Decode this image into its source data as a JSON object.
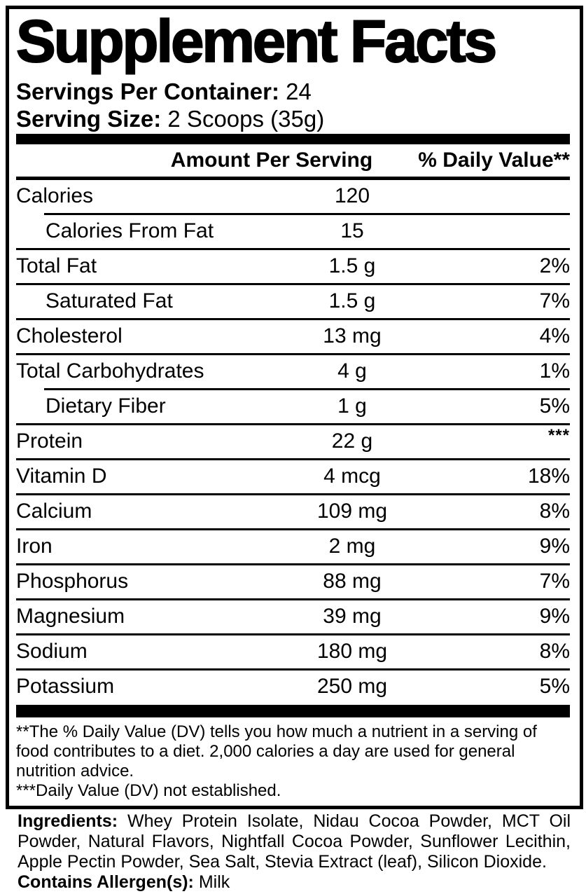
{
  "panel": {
    "title": "Supplement Facts",
    "servings_per_container": {
      "label": "Servings Per Container:",
      "value": "24"
    },
    "serving_size": {
      "label": "Serving Size:",
      "value": "2 Scoops (35g)"
    },
    "columns": {
      "amount": "Amount Per Serving",
      "daily_value": "% Daily Value**"
    },
    "rows": [
      {
        "label": "Calories",
        "amount": "120",
        "dv": "",
        "indent": false,
        "separator_above": null
      },
      {
        "label": "Calories From Fat",
        "amount": "15",
        "dv": "",
        "indent": true,
        "separator_above": "indented"
      },
      {
        "label": "Total Fat",
        "amount": "1.5 g",
        "dv": "2%",
        "indent": false,
        "separator_above": "full"
      },
      {
        "label": "Saturated Fat",
        "amount": "1.5 g",
        "dv": "7%",
        "indent": true,
        "separator_above": "full"
      },
      {
        "label": "Cholesterol",
        "amount": "13 mg",
        "dv": "4%",
        "indent": false,
        "separator_above": "full"
      },
      {
        "label": "Total Carbohydrates",
        "amount": "4 g",
        "dv": "1%",
        "indent": false,
        "separator_above": "full"
      },
      {
        "label": "Dietary Fiber",
        "amount": "1 g",
        "dv": "5%",
        "indent": true,
        "separator_above": "indented"
      },
      {
        "label": "Protein",
        "amount": "22 g",
        "dv": "***",
        "indent": false,
        "separator_above": "full"
      },
      {
        "label": "Vitamin D",
        "amount": "4 mcg",
        "dv": "18%",
        "indent": false,
        "separator_above": "full"
      },
      {
        "label": "Calcium",
        "amount": "109 mg",
        "dv": "8%",
        "indent": false,
        "separator_above": "full"
      },
      {
        "label": "Iron",
        "amount": "2 mg",
        "dv": "9%",
        "indent": false,
        "separator_above": "full"
      },
      {
        "label": "Phosphorus",
        "amount": "88 mg",
        "dv": "7%",
        "indent": false,
        "separator_above": "full"
      },
      {
        "label": "Magnesium",
        "amount": "39 mg",
        "dv": "9%",
        "indent": false,
        "separator_above": "full"
      },
      {
        "label": "Sodium",
        "amount": "180 mg",
        "dv": "8%",
        "indent": false,
        "separator_above": "full"
      },
      {
        "label": "Potassium",
        "amount": "250 mg",
        "dv": "5%",
        "indent": false,
        "separator_above": "full"
      }
    ],
    "footnotes": [
      "**The % Daily Value (DV) tells you how much a nutrient in a serving of food contributes to a diet. 2,000 calories a day are used for general nutrition advice.",
      "***Daily Value (DV) not established."
    ]
  },
  "ingredients": {
    "label": "Ingredients:",
    "value": "Whey Protein Isolate, Nidau Cocoa Powder, MCT Oil Powder, Natural Flavors, Nightfall Cocoa Powder, Sunflower Lecithin, Apple Pectin Powder, Sea Salt, Stevia Extract (leaf), Silicon Dioxide."
  },
  "allergen": {
    "label": "Contains Allergen(s):",
    "value": "Milk"
  },
  "colors": {
    "ink": "#000000",
    "background": "#ffffff"
  }
}
